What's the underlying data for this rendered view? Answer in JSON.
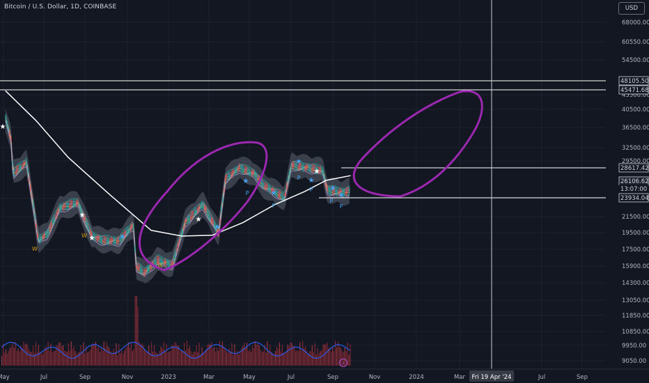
{
  "header": {
    "title": "Bitcoin / U.S. Dollar, 1D, COINBASE",
    "currency_button": "USD"
  },
  "colors": {
    "background": "#131722",
    "grid": "#1e2230",
    "text": "#b2b5be",
    "annotation": "#9c27b0",
    "hline": "#ffffff",
    "ma": "#ffffff",
    "volume_up": "#8f2a35",
    "volume_down": "#b33a44",
    "volume_ma": "#2962ff",
    "star_blue": "#42a5f5",
    "marker_yellow": "#d4a017"
  },
  "price_axis": {
    "labels": [
      "68000.00",
      "60550.00",
      "54500.00",
      "45500.00",
      "40500.00",
      "36500.00",
      "32500.00",
      "29500.00",
      "23500.00",
      "21500.00",
      "19500.00",
      "17500.00",
      "15900.00",
      "14300.00",
      "13050.00",
      "11850.00",
      "10850.00",
      "9950.00",
      "9050.00"
    ],
    "price_tags": [
      {
        "value": "48105.50",
        "style": "line"
      },
      {
        "value": "45471.68",
        "style": "line"
      },
      {
        "value": "28617.42",
        "style": "line"
      },
      {
        "value": "26106.62",
        "style": "current"
      },
      {
        "value": "13:07:00",
        "style": "countdown"
      },
      {
        "value": "23934.04",
        "style": "line"
      }
    ]
  },
  "time_axis": {
    "labels": [
      "May",
      "Jul",
      "Sep",
      "Nov",
      "2023",
      "Mar",
      "May",
      "Jul",
      "Sep",
      "Nov",
      "2024",
      "Mar",
      "Jul",
      "Sep"
    ],
    "crosshair_label": "Fri 19 Apr '24"
  },
  "markers": {
    "w_labels": [
      "W",
      "W",
      "W"
    ],
    "p_labels": [
      "P",
      "P",
      "P",
      "P",
      "P",
      "P"
    ]
  },
  "chart_data": {
    "type": "candlestick",
    "symbol": "Bitcoin / U.S. Dollar",
    "interval": "1D",
    "exchange": "COINBASE",
    "y_scale": "log",
    "ylim": [
      8800,
      80000
    ],
    "price_path": [
      [
        "2022-05-01",
        40500
      ],
      [
        "2022-05-09",
        36000
      ],
      [
        "2022-05-12",
        29000
      ],
      [
        "2022-06-01",
        31000
      ],
      [
        "2022-06-13",
        22500
      ],
      [
        "2022-06-18",
        19300
      ],
      [
        "2022-07-01",
        20000
      ],
      [
        "2022-07-20",
        23500
      ],
      [
        "2022-08-15",
        24300
      ],
      [
        "2022-09-05",
        19800
      ],
      [
        "2022-09-20",
        19300
      ],
      [
        "2022-10-15",
        19200
      ],
      [
        "2022-11-05",
        21200
      ],
      [
        "2022-11-09",
        16500
      ],
      [
        "2022-11-21",
        15800
      ],
      [
        "2022-12-10",
        17100
      ],
      [
        "2023-01-01",
        16600
      ],
      [
        "2023-01-20",
        21500
      ],
      [
        "2023-02-15",
        24000
      ],
      [
        "2023-03-10",
        20200
      ],
      [
        "2023-03-20",
        28000
      ],
      [
        "2023-04-10",
        30000
      ],
      [
        "2023-05-01",
        29000
      ],
      [
        "2023-05-15",
        27000
      ],
      [
        "2023-06-15",
        25000
      ],
      [
        "2023-06-25",
        30500
      ],
      [
        "2023-07-20",
        30000
      ],
      [
        "2023-08-10",
        29500
      ],
      [
        "2023-08-17",
        26200
      ],
      [
        "2023-09-10",
        25800
      ],
      [
        "2023-09-20",
        26106.62
      ]
    ],
    "moving_average": [
      [
        "2022-05-01",
        48000
      ],
      [
        "2022-06-15",
        40000
      ],
      [
        "2022-08-01",
        32000
      ],
      [
        "2022-10-01",
        25500
      ],
      [
        "2022-12-01",
        20500
      ],
      [
        "2023-01-15",
        19800
      ],
      [
        "2023-03-01",
        19900
      ],
      [
        "2023-04-15",
        21500
      ],
      [
        "2023-06-01",
        24000
      ],
      [
        "2023-07-15",
        26000
      ],
      [
        "2023-08-15",
        27800
      ],
      [
        "2023-09-20",
        28617.42
      ]
    ],
    "horizontal_lines": [
      48105.5,
      45471.68,
      28617.42,
      23934.04
    ],
    "current_price": 26106.62,
    "countdown": "13:07:00",
    "crosshair_date": "Fri 19 Apr '24"
  }
}
